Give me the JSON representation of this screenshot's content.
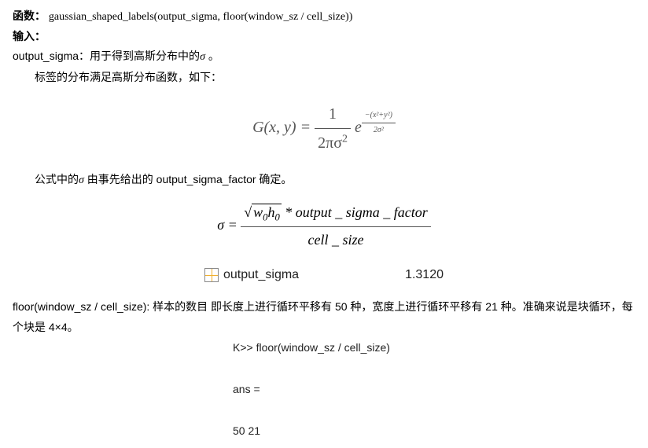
{
  "line1_label": "函数：",
  "line1_code": "gaussian_shaped_labels(output_sigma, floor(window_sz / cell_size))",
  "line2_label": "输入：",
  "p1_a": "output_sigma：用于得到高斯分布中的",
  "p1_sigma": "σ",
  "p1_b": " 。",
  "p2": "标签的分布满足高斯分布函数，如下：",
  "formula1": {
    "lhs": "G(x, y) = ",
    "num1": "1",
    "den1_a": "2πσ",
    "den1_exp": "2",
    "e": "e",
    "exp_num": "−(x²+y²)",
    "exp_den": "2σ²"
  },
  "p3_a": "公式中的",
  "p3_sigma": "σ",
  "p3_b": " 由事先给出的 output_sigma_factor 确定。",
  "formula2": {
    "sigma": "σ",
    "eq": " = ",
    "sqrt_inner_a": "w",
    "sqrt_inner_a_sub": "0",
    "sqrt_inner_b": "h",
    "sqrt_inner_b_sub": "0",
    "star": " * ",
    "factor": "output _ sigma _ factor",
    "den": "cell _ size"
  },
  "var_name": "output_sigma",
  "var_value": "1.3120",
  "p4": "floor(window_sz / cell_size):  样本的数目    即长度上进行循环平移有 50 种，宽度上进行循环平移有 21 种。准确来说是块循环，每个块是 4×4。",
  "console": {
    "l1": "K>> floor(window_sz / cell_size)",
    "l2": "ans =",
    "l3": "    50    21"
  }
}
